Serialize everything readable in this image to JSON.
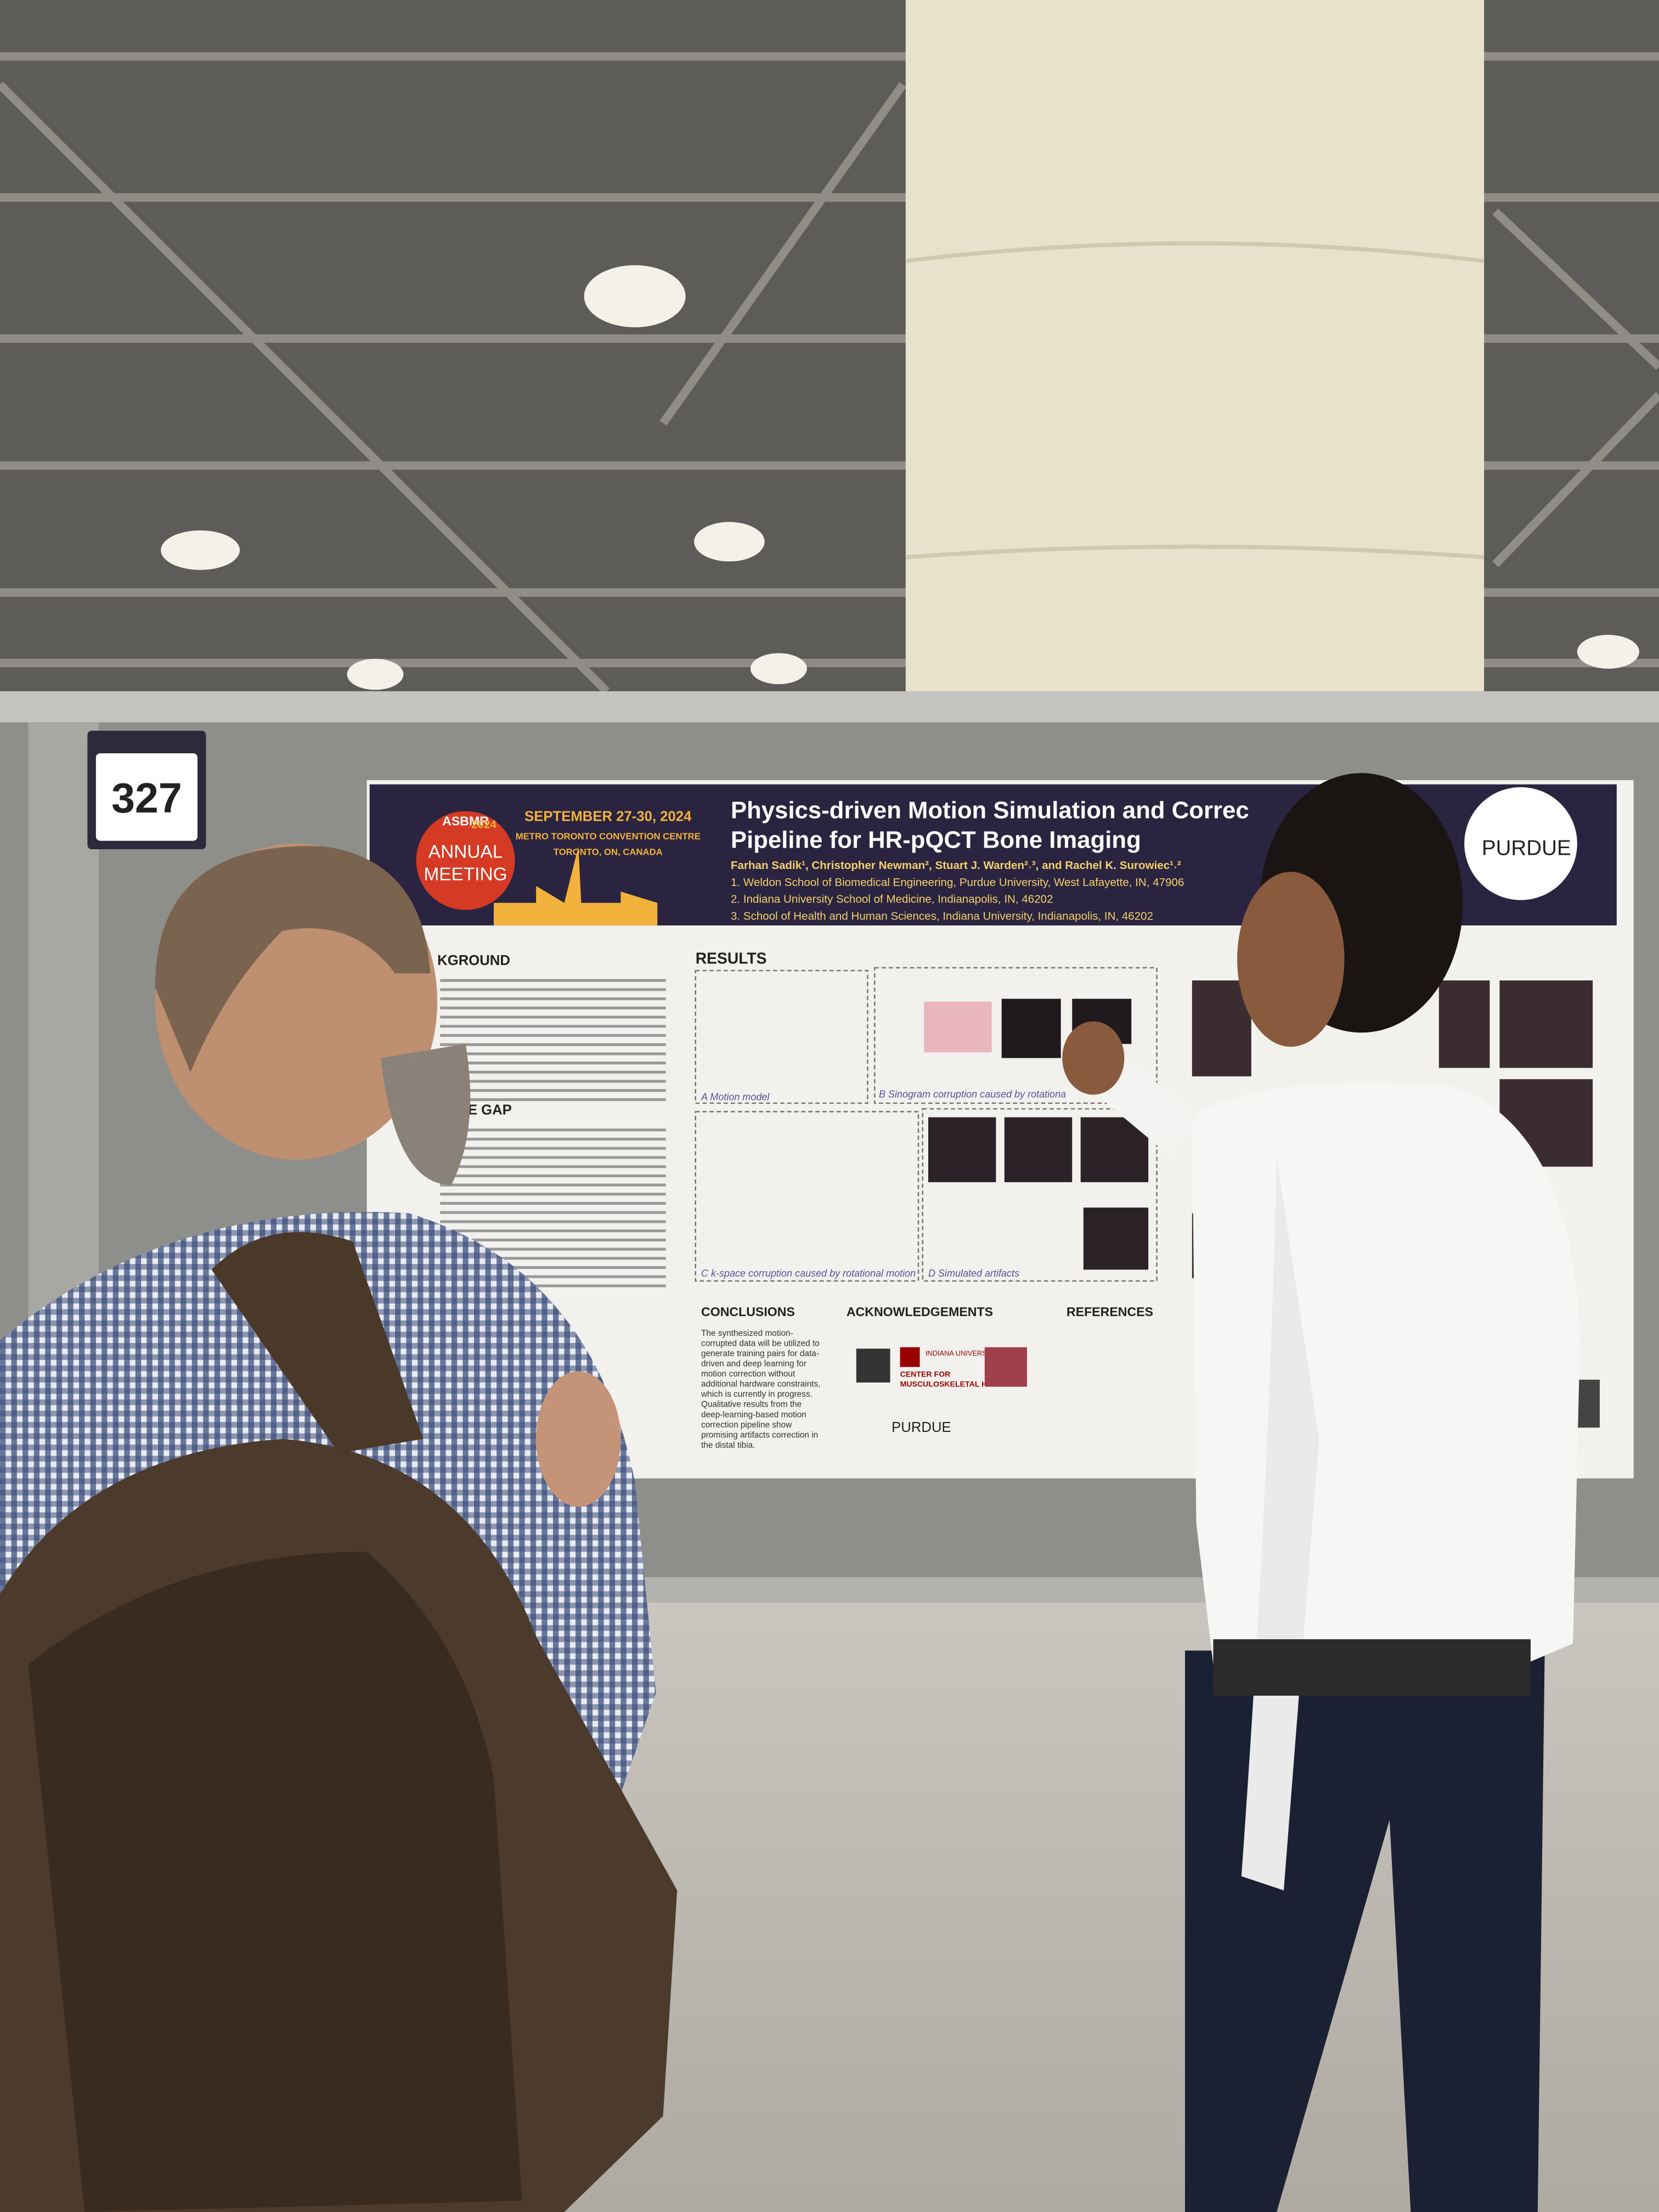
{
  "booth_number": "327",
  "poster": {
    "conference": {
      "org": "ASBMR",
      "year": "2024",
      "name": [
        "ANNUAL",
        "MEETING"
      ],
      "dates": "SEPTEMBER 27-30, 2024",
      "venue": "METRO TORONTO CONVENTION CENTRE",
      "location": "TORONTO, ON, CANADA"
    },
    "title": [
      "Physics-driven Motion Simulation and Correc",
      "Pipeline for HR-pQCT Bone Imaging"
    ],
    "authors": "Farhan Sadik¹, Christopher Newman², Stuart J. Warden²˒³, and Rachel K. Surowiec¹˒²",
    "affiliations": [
      "1. Weldon School of Biomedical Engineering, Purdue University, West Lafayette, IN, 47906",
      "2. Indiana University School of Medicine, Indianapolis, IN, 46202",
      "3. School of Health and Human Sciences, Indiana University, Indianapolis, IN, 46202"
    ],
    "university": "PURDUE",
    "sections": {
      "background": "KGROUND",
      "gap": "EDGE GAP",
      "results": "RESULTS",
      "conclusions": "CONCLUSIONS",
      "acknowledgements": "ACKNOWLEDGEMENTS",
      "references": "REFERENCES"
    },
    "panels": [
      "A Motion model",
      "B Sinogram corruption caused by rotationa",
      "C k-space corruption caused by rotational motion",
      "D Simulated artifacts"
    ],
    "conclusions_text": [
      "The synthesized motion-",
      "corrupted data will be utilized to",
      "generate training pairs for data-",
      "driven and deep learning for",
      "motion correction without",
      "additional hardware constraints,",
      "which is currently in progress.",
      "Qualitative results from the",
      "deep-learning-based motion",
      "correction pipeline show",
      "promising artifacts correction in",
      "the distal tibia."
    ],
    "acknowledgement_logos": [
      "INDIANA UNIVERSITY",
      "CENTER FOR",
      "MUSCULOSKELETAL HEALTH",
      "PURDUE"
    ]
  }
}
